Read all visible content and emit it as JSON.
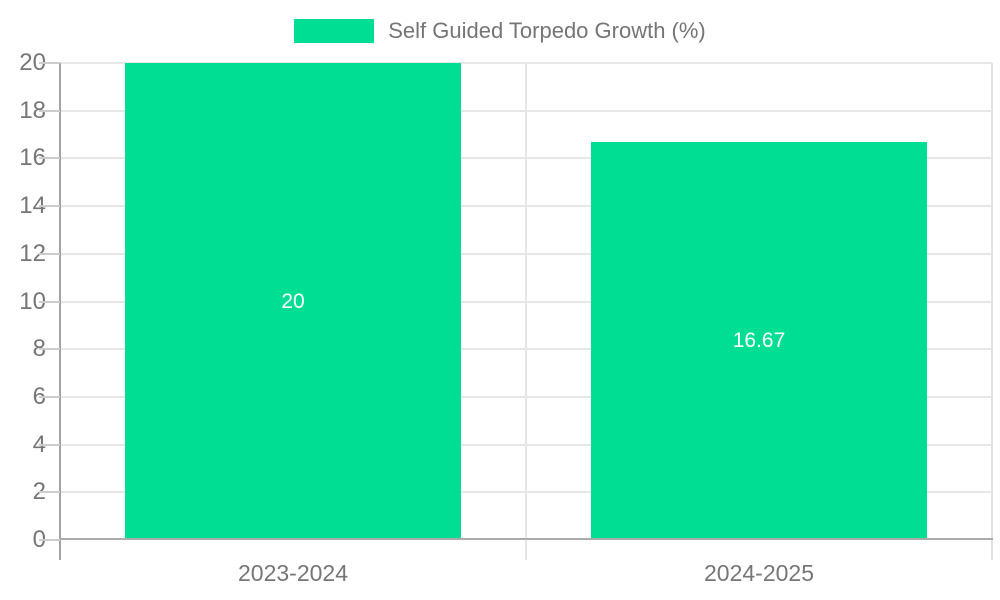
{
  "chart_data": {
    "type": "bar",
    "title": "Self Guided Torpedo Growth (%)",
    "categories": [
      "2023-2024",
      "2024-2025"
    ],
    "values": [
      20,
      16.67
    ],
    "value_labels": [
      "20",
      "16.67"
    ],
    "xlabel": "",
    "ylabel": "",
    "ylim": [
      0,
      20
    ],
    "ytick_step": 2,
    "ytick_labels": [
      "0",
      "2",
      "4",
      "6",
      "8",
      "10",
      "12",
      "14",
      "16",
      "18",
      "20"
    ],
    "grid": true,
    "legend": {
      "label": "Self Guided Torpedo Growth (%)",
      "position": "top-center"
    }
  },
  "colors": {
    "background": "#ffffff",
    "bar": "#00de94",
    "axis_line": "#a6a6a6",
    "gridline": "#e7e7e7",
    "divider": "#e6e6e6",
    "tick": "#cccccc",
    "axis_text": "#767676",
    "legend_text": "#757575",
    "value_text": "#ffffff"
  }
}
